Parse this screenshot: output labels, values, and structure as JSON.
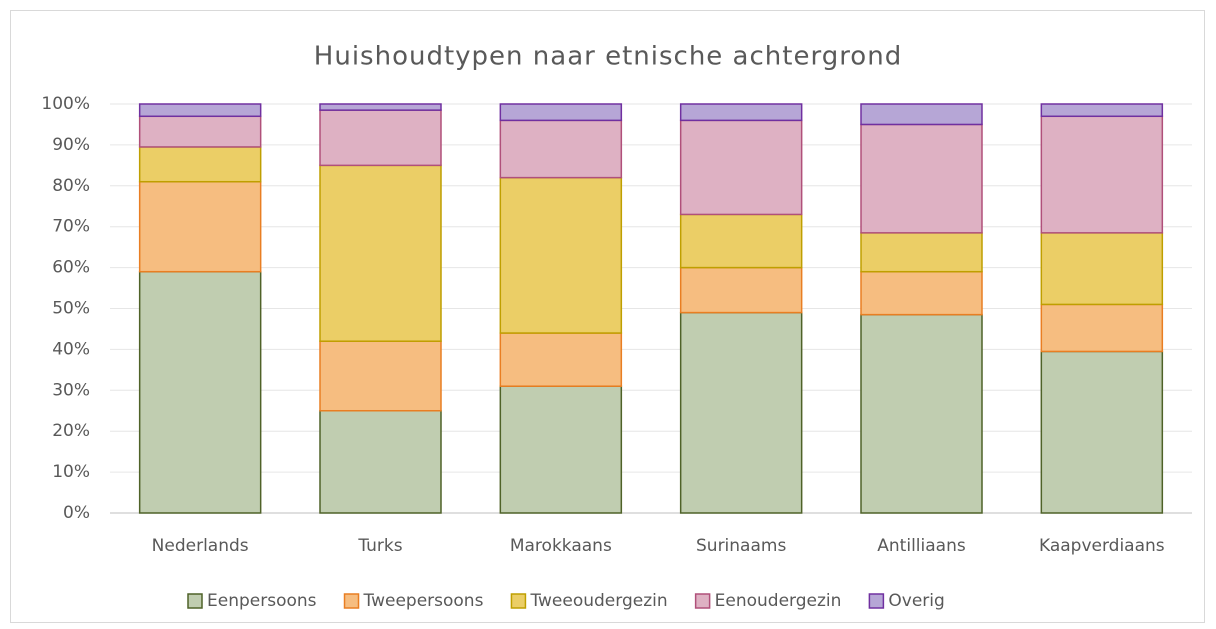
{
  "chart_data": {
    "type": "stacked_bar",
    "title": "Huishoudtypen naar etnische achtergrond",
    "categories": [
      "Nederlands",
      "Turks",
      "Marokkaans",
      "Surinaams",
      "Antilliaans",
      "Kaapverdiaans"
    ],
    "series": [
      {
        "name": "Eenpersoons",
        "color": "#c0cdb0",
        "edgecolor": "#4f6228",
        "values": [
          59,
          25,
          31,
          49,
          48.5,
          39.5
        ]
      },
      {
        "name": "Tweepersoons",
        "color": "#f6bd80",
        "edgecolor": "#e97e22",
        "values": [
          22,
          17,
          13,
          11,
          10.5,
          11.5
        ]
      },
      {
        "name": "Tweeoudergezin",
        "color": "#ebce66",
        "edgecolor": "#bf9f00",
        "values": [
          8.5,
          43,
          38,
          13,
          9.5,
          17.5
        ]
      },
      {
        "name": "Eenoudergezin",
        "color": "#deb1c3",
        "edgecolor": "#b0507a",
        "values": [
          7.5,
          13.5,
          14,
          23,
          26.5,
          28.5
        ]
      },
      {
        "name": "Overig",
        "color": "#b6a6d6",
        "edgecolor": "#7030a0",
        "values": [
          3,
          1.5,
          4,
          4,
          5,
          3
        ]
      }
    ],
    "ylim": [
      0,
      100
    ],
    "yticks": [
      {
        "value": 0,
        "label": "0%"
      },
      {
        "value": 10,
        "label": "10%"
      },
      {
        "value": 20,
        "label": "20%"
      },
      {
        "value": 30,
        "label": "30%"
      },
      {
        "value": 40,
        "label": "40%"
      },
      {
        "value": 50,
        "label": "50%"
      },
      {
        "value": 60,
        "label": "60%"
      },
      {
        "value": 70,
        "label": "70%"
      },
      {
        "value": 80,
        "label": "80%"
      },
      {
        "value": 90,
        "label": "90%"
      },
      {
        "value": 100,
        "label": "100%"
      }
    ],
    "grid": true,
    "legend": "bottom"
  }
}
